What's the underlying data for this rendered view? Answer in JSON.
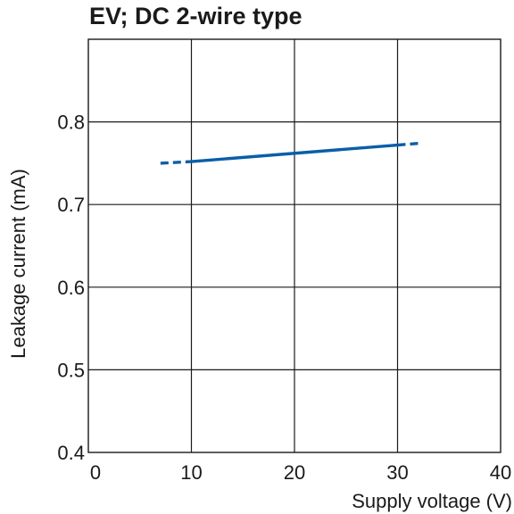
{
  "chart_data": {
    "type": "line",
    "title": "EV; DC 2-wire type",
    "xlabel": "Supply voltage (V)",
    "ylabel": "Leakage current (mA)",
    "xlim": [
      0,
      40
    ],
    "ylim": [
      0.4,
      0.9
    ],
    "x_ticks": [
      0,
      10,
      20,
      30,
      40
    ],
    "x_tick_labels": [
      "0",
      "10",
      "20",
      "30",
      "40"
    ],
    "y_ticks": [
      0.4,
      0.5,
      0.6,
      0.7,
      0.8
    ],
    "y_tick_labels": [
      "0.4",
      "0.5",
      "0.6",
      "0.7",
      "0.8"
    ],
    "grid": true,
    "series": [
      {
        "color": "#0a5ea8",
        "segments": [
          {
            "style": "dashed",
            "x": [
              7,
              10
            ],
            "y": [
              0.75,
              0.752
            ]
          },
          {
            "style": "solid",
            "x": [
              10,
              30
            ],
            "y": [
              0.752,
              0.772
            ]
          },
          {
            "style": "dashed",
            "x": [
              30,
              32
            ],
            "y": [
              0.772,
              0.774
            ]
          }
        ]
      }
    ]
  }
}
